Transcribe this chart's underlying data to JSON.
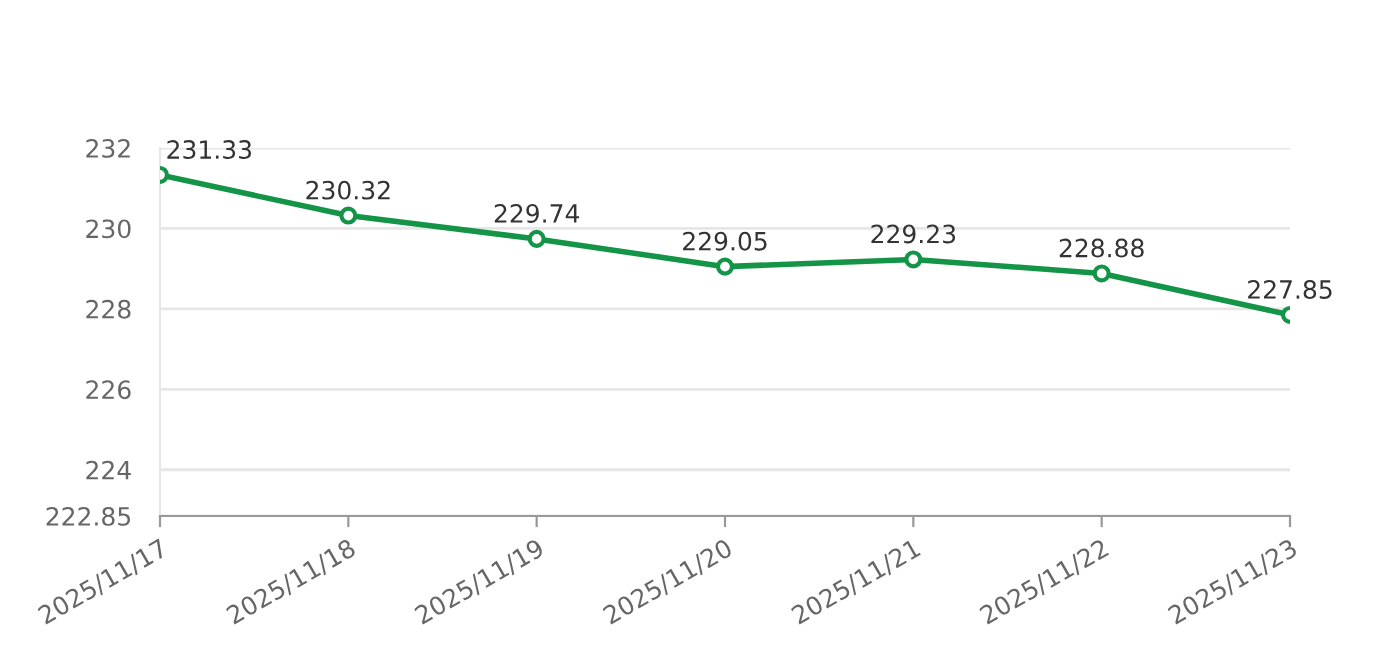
{
  "chart_data": {
    "type": "line",
    "categories": [
      "2025/11/17",
      "2025/11/18",
      "2025/11/19",
      "2025/11/20",
      "2025/11/21",
      "2025/11/22",
      "2025/11/23"
    ],
    "series": [
      {
        "color": "#139447",
        "values": [
          231.33,
          230.32,
          229.74,
          229.05,
          229.23,
          228.88,
          227.85
        ]
      }
    ],
    "ylim": [
      222.85,
      232
    ],
    "yticks": [
      222.85,
      224,
      226,
      228,
      230,
      232
    ],
    "grid": "y",
    "marker": "circle",
    "line_style": "solid",
    "data_labels": true
  }
}
